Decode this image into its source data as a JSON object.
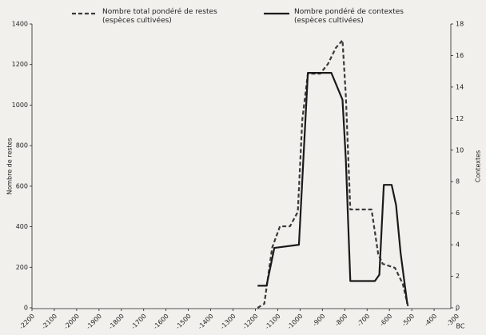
{
  "chart_data": {
    "type": "line",
    "xlabel": "BC",
    "ylabel": "Nombre de restes",
    "y2label": "Contextes",
    "xlim": [
      -2200,
      -300
    ],
    "xticks": [
      -2200,
      -2100,
      -2000,
      -1900,
      -1800,
      -1700,
      -1600,
      -1500,
      -1400,
      -1300,
      -1200,
      -1100,
      -1000,
      -900,
      -800,
      -700,
      -600,
      -500,
      -400,
      -300
    ],
    "ylim": [
      0,
      1400
    ],
    "yticks": [
      0,
      200,
      400,
      600,
      800,
      1000,
      1200,
      1400
    ],
    "y2lim": [
      0,
      18
    ],
    "y2ticks": [
      0,
      2,
      4,
      6,
      8,
      10,
      12,
      14,
      16,
      18
    ],
    "series": [
      {
        "name": "Nombre total pondéré de restes (espèces cultivées)",
        "color": "#3a3a3a",
        "line_style": "dashed",
        "x": [
          -1190,
          -1160,
          -1125,
          -1090,
          -1045,
          -1010,
          -990,
          -965,
          -910,
          -875,
          -840,
          -810,
          -795,
          -775,
          -680,
          -650,
          -630,
          -575,
          -540,
          -515
        ],
        "values": [
          0,
          20,
          296,
          402,
          402,
          473,
          927,
          1155,
          1155,
          1203,
          1282,
          1320,
          1045,
          485,
          485,
          264,
          217,
          197,
          118,
          0
        ]
      },
      {
        "name": "Nombre pondéré de contextes (espèces cultivées)",
        "color": "#1a1a1a",
        "line_style": "solid",
        "axis": "y2",
        "x": [
          -1190,
          -1150,
          -1115,
          -1005,
          -965,
          -860,
          -810,
          -795,
          -775,
          -665,
          -645,
          -625,
          -590,
          -570,
          -550,
          -520
        ],
        "values": [
          1.4,
          1.4,
          3.8,
          4.0,
          14.9,
          14.9,
          13.2,
          9.4,
          1.7,
          1.7,
          2.1,
          7.8,
          7.8,
          6.5,
          3.5,
          0.25
        ]
      }
    ]
  }
}
